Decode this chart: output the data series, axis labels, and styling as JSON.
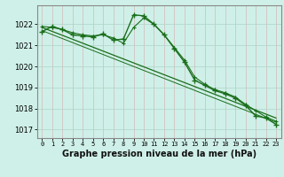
{
  "title": "Graphe pression niveau de la mer (hPa)",
  "bg_color": "#cff0e8",
  "grid_color_major": "#aed4c8",
  "grid_color_minor": "#cce8e0",
  "line_color": "#1a6e1a",
  "ylim": [
    1016.6,
    1022.9
  ],
  "xlim": [
    -0.5,
    23.5
  ],
  "yticks": [
    1017,
    1018,
    1019,
    1020,
    1021,
    1022
  ],
  "xtick_labels": [
    "0",
    "1",
    "2",
    "3",
    "4",
    "5",
    "6",
    "7",
    "8",
    "9",
    "10",
    "11",
    "12",
    "13",
    "14",
    "15",
    "16",
    "17",
    "18",
    "19",
    "20",
    "21",
    "22",
    "23"
  ],
  "main_x": [
    0,
    1,
    2,
    3,
    4,
    5,
    6,
    7,
    8,
    9,
    10,
    11,
    12,
    13,
    14,
    15,
    16,
    17,
    18,
    19,
    20,
    21,
    22,
    23
  ],
  "main_y": [
    1021.65,
    1021.9,
    1021.75,
    1021.5,
    1021.45,
    1021.4,
    1021.55,
    1021.25,
    1021.3,
    1022.45,
    1022.4,
    1022.0,
    1021.5,
    1020.85,
    1020.2,
    1019.35,
    1019.1,
    1018.85,
    1018.7,
    1018.5,
    1018.15,
    1017.65,
    1017.55,
    1017.25
  ],
  "line2_x": [
    0,
    1,
    2,
    3,
    4,
    5,
    6,
    7,
    8,
    9,
    10,
    11,
    12,
    13,
    14,
    15,
    16,
    17,
    18,
    19,
    20,
    21,
    22,
    23
  ],
  "line2_y": [
    1021.9,
    1021.85,
    1021.75,
    1021.6,
    1021.5,
    1021.45,
    1021.5,
    1021.35,
    1021.1,
    1021.85,
    1022.3,
    1022.0,
    1021.5,
    1020.9,
    1020.3,
    1019.5,
    1019.15,
    1018.9,
    1018.75,
    1018.55,
    1018.2,
    1017.9,
    1017.6,
    1017.4
  ],
  "trend_x": [
    0,
    23
  ],
  "trend_y": [
    1021.85,
    1017.55
  ],
  "trend2_x": [
    0,
    23
  ],
  "trend2_y": [
    1021.7,
    1017.35
  ]
}
